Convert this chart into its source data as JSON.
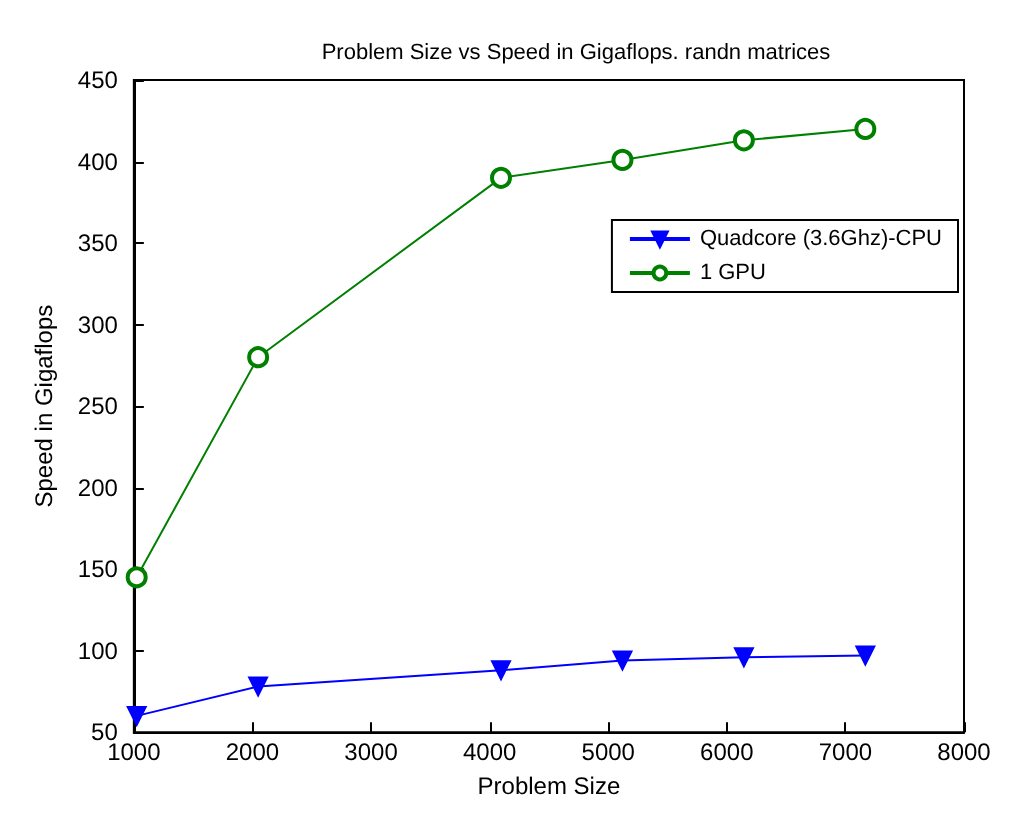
{
  "chart_data": {
    "type": "line",
    "title": "Problem Size vs Speed in Gigaflops. randn matrices",
    "xlabel": "Problem Size",
    "ylabel": "Speed in Gigaflops",
    "x": [
      1024,
      2048,
      4096,
      5120,
      6144,
      7168
    ],
    "series": [
      {
        "name": "Quadcore (3.6Ghz)-CPU",
        "color": "#0000ff",
        "marker": "triangle",
        "values": [
          60,
          78,
          88,
          94,
          96,
          97
        ]
      },
      {
        "name": "1 GPU",
        "color": "#008000",
        "marker": "circle",
        "values": [
          145,
          280,
          390,
          401,
          413,
          420
        ]
      }
    ],
    "xlim": [
      1000,
      8000
    ],
    "xticks": [
      1000,
      2000,
      3000,
      4000,
      5000,
      6000,
      7000,
      8000
    ],
    "ylim": [
      50,
      450
    ],
    "yticks": [
      50,
      100,
      150,
      200,
      250,
      300,
      350,
      400,
      450
    ],
    "legend": "top right",
    "line_style": "solid"
  }
}
